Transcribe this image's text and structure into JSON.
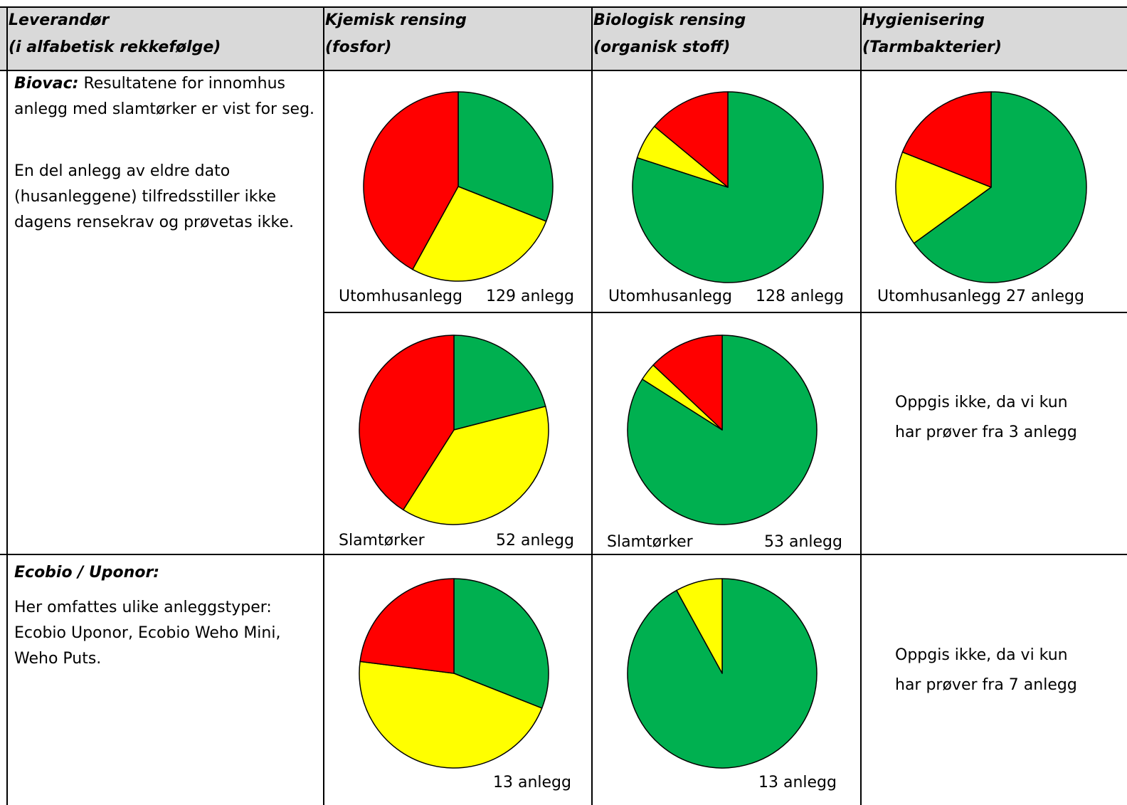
{
  "colors": {
    "green": "#00b050",
    "yellow": "#ffff00",
    "red": "#ff0000",
    "header_bg": "#d9d9d9"
  },
  "header": {
    "col1": [
      "Leverandør",
      "(i alfabetisk rekkefølge)"
    ],
    "col2": [
      "Kjemisk rensing",
      "(fosfor)"
    ],
    "col3": [
      "Biologisk rensing",
      "(organisk stoff)"
    ],
    "col4": [
      "Hygienisering",
      "(Tarmbakterier)"
    ]
  },
  "biovac": {
    "name": "Biovac:",
    "intro": " Resultatene for innomhus anlegg med slamtørker er vist for seg.",
    "note": "En del anlegg av eldre dato (husanleggene) tilfredsstiller ikke dagens rensekrav og prøvetas ikke.",
    "row1": {
      "chem_label_left": "Utomhusanlegg",
      "chem_label_right": "129 anlegg",
      "bio_label_left": "Utomhusanlegg",
      "bio_label_right": "128 anlegg",
      "hyg_label": "Utomhusanlegg 27 anlegg"
    },
    "row2": {
      "chem_label_left": "Slamtørker",
      "chem_label_right": "52 anlegg",
      "bio_label_left": "Slamtørker",
      "bio_label_right": "53 anlegg",
      "hyg_note": [
        "Oppgis ikke, da vi kun",
        "har prøver fra 3 anlegg"
      ]
    }
  },
  "ecobio": {
    "name": "Ecobio / Uponor:",
    "desc": "Her omfattes ulike anleggstyper: Ecobio Uponor, Ecobio Weho Mini, Weho Puts.",
    "chem_label": "13 anlegg",
    "bio_label": "13 anlegg",
    "hyg_note": [
      "Oppgis ikke, da vi kun",
      "har prøver fra 7 anlegg"
    ]
  },
  "chart_data": [
    {
      "type": "pie",
      "title": "Kjemisk rensing (fosfor) – Biovac Utomhusanlegg 129 anlegg",
      "categories": [
        "green",
        "yellow",
        "red"
      ],
      "values": [
        31,
        27,
        42
      ]
    },
    {
      "type": "pie",
      "title": "Biologisk rensing (organisk stoff) – Biovac Utomhusanlegg 128 anlegg",
      "categories": [
        "green",
        "yellow",
        "red"
      ],
      "values": [
        80,
        6,
        14
      ]
    },
    {
      "type": "pie",
      "title": "Hygienisering (Tarmbakterier) – Biovac Utomhusanlegg 27 anlegg",
      "categories": [
        "green",
        "yellow",
        "red"
      ],
      "values": [
        65,
        16,
        19
      ]
    },
    {
      "type": "pie",
      "title": "Kjemisk rensing (fosfor) – Biovac Slamtørker 52 anlegg",
      "categories": [
        "green",
        "yellow",
        "red"
      ],
      "values": [
        21,
        38,
        41
      ]
    },
    {
      "type": "pie",
      "title": "Biologisk rensing (organisk stoff) – Biovac Slamtørker 53 anlegg",
      "categories": [
        "green",
        "yellow",
        "red"
      ],
      "values": [
        84,
        3,
        13
      ]
    },
    {
      "type": "pie",
      "title": "Kjemisk rensing (fosfor) – Ecobio / Uponor 13 anlegg",
      "categories": [
        "green",
        "yellow",
        "red"
      ],
      "values": [
        31,
        46,
        23
      ]
    },
    {
      "type": "pie",
      "title": "Biologisk rensing (organisk stoff) – Ecobio / Uponor 13 anlegg",
      "categories": [
        "green",
        "yellow",
        "red"
      ],
      "values": [
        92,
        8,
        0
      ]
    }
  ]
}
